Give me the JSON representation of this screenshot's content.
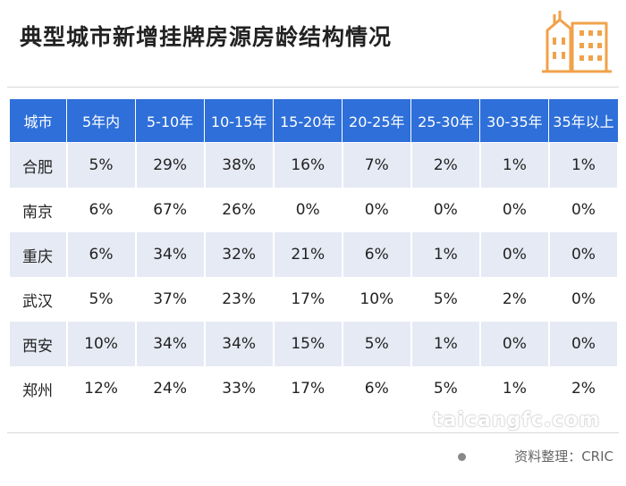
{
  "title": "典型城市新增挂牌房源房龄结构情况",
  "accent_color": "#2e6fd9",
  "logo_icon": "building-icon",
  "table": {
    "headers": [
      "城市",
      "5年内",
      "5-10年",
      "10-15年",
      "15-20年",
      "20-25年",
      "25-30年",
      "30-35年",
      "35年以上"
    ],
    "rows": [
      [
        "合肥",
        "5%",
        "29%",
        "38%",
        "16%",
        "7%",
        "2%",
        "1%",
        "1%"
      ],
      [
        "南京",
        "6%",
        "67%",
        "26%",
        "0%",
        "0%",
        "0%",
        "0%",
        "0%"
      ],
      [
        "重庆",
        "6%",
        "34%",
        "32%",
        "21%",
        "6%",
        "1%",
        "0%",
        "0%"
      ],
      [
        "武汉",
        "5%",
        "37%",
        "23%",
        "17%",
        "10%",
        "5%",
        "2%",
        "0%"
      ],
      [
        "西安",
        "10%",
        "34%",
        "34%",
        "15%",
        "5%",
        "1%",
        "0%",
        "0%"
      ],
      [
        "郑州",
        "12%",
        "24%",
        "33%",
        "17%",
        "6%",
        "5%",
        "1%",
        "2%"
      ]
    ]
  },
  "watermark": "taicangfc.com",
  "source": "资料整理：CRIC"
}
